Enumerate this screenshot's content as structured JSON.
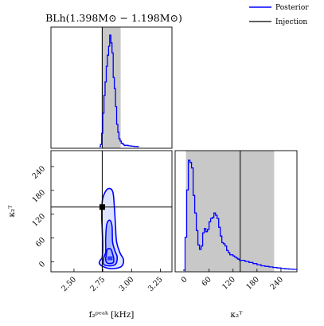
{
  "colors": {
    "posterior": "#0000ff",
    "injection": "#000000",
    "credible_band": "#c8c8c8",
    "contour_fill_outer": "#dde4ff",
    "contour_fill_mid": "#a8b8ff",
    "contour_fill_inner": "#2d3cff"
  },
  "legend": {
    "placement": "top-right",
    "entries": [
      {
        "label": "Posterior",
        "color": "#0000ff"
      },
      {
        "label": "Injection",
        "color": "#000000"
      }
    ]
  },
  "chart_data": [
    {
      "panel": "fpeak-marginal",
      "type": "line",
      "title": "BLh(1.398M⊙ − 1.198M⊙)",
      "xlim": [
        2.3,
        3.35
      ],
      "injection_x": 2.745,
      "credible_band": [
        2.74,
        2.905
      ],
      "series": [
        {
          "name": "Posterior",
          "x": [
            2.72,
            2.73,
            2.74,
            2.75,
            2.76,
            2.77,
            2.78,
            2.79,
            2.8,
            2.81,
            2.82,
            2.83,
            2.84,
            2.85,
            2.86,
            2.87,
            2.88,
            2.89,
            2.9,
            2.91,
            2.92,
            2.93,
            2.94,
            2.95,
            2.97,
            2.99,
            3.0,
            3.02,
            3.05
          ],
          "y": [
            0.0,
            0.02,
            0.12,
            0.3,
            0.46,
            0.58,
            0.72,
            0.82,
            0.9,
            1.0,
            0.93,
            0.84,
            0.62,
            0.52,
            0.36,
            0.2,
            0.13,
            0.07,
            0.05,
            0.03,
            0.025,
            0.015,
            0.01,
            0.012,
            0.008,
            0.006,
            0.004,
            0.002,
            0.0
          ]
        }
      ]
    },
    {
      "panel": "joint-contour",
      "type": "contour",
      "xlabel": "f₂ᵖᵉᵃᵏ [kHz]",
      "ylabel": "κ₂ᵀ",
      "xlim": [
        2.3,
        3.35
      ],
      "ylim": [
        -25,
        280
      ],
      "xticks": [
        2.5,
        2.75,
        3.0,
        3.25
      ],
      "xtick_labels": [
        "2.50",
        "2.75",
        "3.00",
        "3.25"
      ],
      "yticks": [
        0,
        60,
        120,
        180,
        240
      ],
      "ytick_labels": [
        "0",
        "60",
        "120",
        "180",
        "240"
      ],
      "injection": {
        "x": 2.745,
        "y": 138
      },
      "contours": [
        {
          "level": "outer",
          "points": [
            [
              2.745,
              12
            ],
            [
              2.75,
              40
            ],
            [
              2.745,
              80
            ],
            [
              2.74,
              120
            ],
            [
              2.75,
              160
            ],
            [
              2.79,
              183
            ],
            [
              2.835,
              178
            ],
            [
              2.85,
              140
            ],
            [
              2.86,
              90
            ],
            [
              2.87,
              50
            ],
            [
              2.9,
              22
            ],
            [
              2.93,
              5
            ],
            [
              2.91,
              -12
            ],
            [
              2.83,
              -17
            ],
            [
              2.76,
              -13
            ],
            [
              2.72,
              -4
            ],
            [
              2.73,
              5
            ]
          ]
        },
        {
          "level": "middle",
          "points": [
            [
              2.775,
              25
            ],
            [
              2.775,
              60
            ],
            [
              2.785,
              95
            ],
            [
              2.81,
              105
            ],
            [
              2.83,
              90
            ],
            [
              2.835,
              50
            ],
            [
              2.855,
              28
            ],
            [
              2.875,
              12
            ],
            [
              2.86,
              -6
            ],
            [
              2.8,
              -10
            ],
            [
              2.755,
              -5
            ],
            [
              2.76,
              12
            ]
          ]
        },
        {
          "level": "inner",
          "points": [
            [
              2.78,
              18
            ],
            [
              2.79,
              32
            ],
            [
              2.82,
              32
            ],
            [
              2.835,
              20
            ],
            [
              2.845,
              8
            ],
            [
              2.84,
              -2
            ],
            [
              2.8,
              -4
            ],
            [
              2.78,
              0
            ],
            [
              2.775,
              8
            ]
          ]
        }
      ],
      "fills": [
        {
          "level": "mid-fill",
          "points": [
            [
              2.79,
              40
            ],
            [
              2.79,
              70
            ],
            [
              2.8,
              92
            ],
            [
              2.82,
              90
            ],
            [
              2.83,
              60
            ],
            [
              2.825,
              38
            ],
            [
              2.81,
              32
            ]
          ]
        },
        {
          "level": "core-fill",
          "points": [
            [
              2.79,
              4
            ],
            [
              2.79,
              14
            ],
            [
              2.835,
              14
            ],
            [
              2.835,
              4
            ]
          ]
        }
      ]
    },
    {
      "panel": "kappa-marginal",
      "type": "line",
      "xlabel": "κ₂ᵀ",
      "xlim": [
        -25,
        280
      ],
      "xticks": [
        0,
        60,
        120,
        180,
        240
      ],
      "xtick_labels": [
        "0",
        "60",
        "120",
        "180",
        "240"
      ],
      "injection_x": 138,
      "credible_band": [
        2,
        223
      ],
      "series": [
        {
          "name": "Posterior",
          "x": [
            -5,
            0,
            4,
            8,
            12,
            16,
            20,
            24,
            28,
            32,
            36,
            40,
            44,
            48,
            52,
            56,
            60,
            64,
            68,
            72,
            76,
            80,
            84,
            88,
            92,
            96,
            100,
            104,
            108,
            112,
            116,
            120,
            124,
            128,
            132,
            136,
            140,
            150,
            160,
            170,
            180,
            190,
            200,
            210,
            220,
            230,
            240,
            250,
            260,
            270,
            280
          ],
          "y": [
            0.0,
            0.3,
            0.73,
            1.0,
            0.98,
            0.93,
            0.68,
            0.52,
            0.36,
            0.23,
            0.19,
            0.22,
            0.34,
            0.38,
            0.35,
            0.37,
            0.44,
            0.47,
            0.48,
            0.52,
            0.5,
            0.47,
            0.39,
            0.31,
            0.25,
            0.24,
            0.22,
            0.18,
            0.16,
            0.14,
            0.14,
            0.13,
            0.12,
            0.11,
            0.1,
            0.09,
            0.09,
            0.08,
            0.07,
            0.06,
            0.05,
            0.04,
            0.035,
            0.03,
            0.025,
            0.02,
            0.015,
            0.012,
            0.01,
            0.008,
            0.005
          ]
        }
      ]
    }
  ]
}
